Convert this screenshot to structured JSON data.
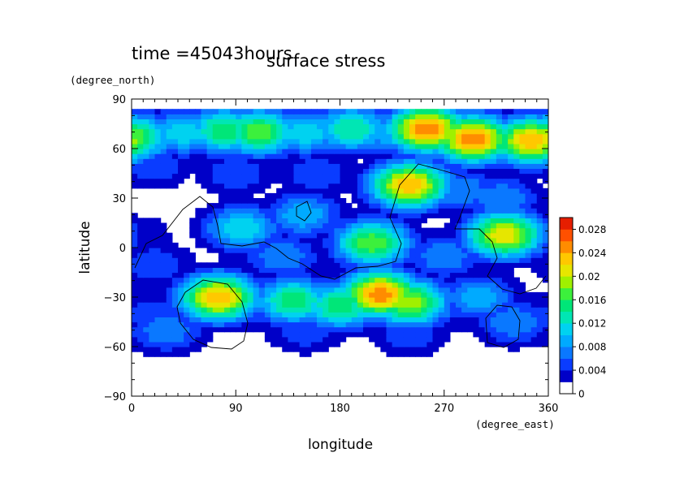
{
  "time_label": "time =45043hours",
  "chart_data": {
    "type": "heatmap",
    "title": "surface stress",
    "xlabel": "longitude",
    "ylabel": "latitude",
    "x_unit": "(degree_east)",
    "y_unit": "(degree_north)",
    "xlim": [
      0,
      360
    ],
    "ylim": [
      -90,
      90
    ],
    "x_ticks": [
      0,
      90,
      180,
      270,
      360
    ],
    "x_tick_labels": [
      "0",
      "90",
      "180",
      "270",
      "360"
    ],
    "y_ticks": [
      -90,
      -60,
      -30,
      0,
      30,
      60,
      90
    ],
    "y_tick_labels": [
      "−90",
      "−60",
      "−30",
      "0",
      "30",
      "60",
      "90"
    ],
    "grid": false,
    "colorbar": {
      "position": "right",
      "levels": [
        0,
        0.002,
        0.004,
        0.006,
        0.008,
        0.01,
        0.012,
        0.014,
        0.016,
        0.018,
        0.02,
        0.022,
        0.024,
        0.026,
        0.028,
        0.03
      ],
      "tick_values": [
        0,
        0.004,
        0.008,
        0.012,
        0.016,
        0.02,
        0.024,
        0.028
      ],
      "tick_labels": [
        "0",
        "0.004",
        "0.008",
        "0.012",
        "0.016",
        "0.02",
        "0.024",
        "0.028"
      ],
      "colors": [
        "#ffffff",
        "#0000c8",
        "#0a3cff",
        "#0a78ff",
        "#00aaff",
        "#00d2f0",
        "#00e6b4",
        "#00e678",
        "#3cf03c",
        "#a0f000",
        "#e6e600",
        "#ffc800",
        "#ff8c00",
        "#ff5000",
        "#e61e00"
      ]
    },
    "field_features": [
      {
        "lon": 0,
        "lat": 67,
        "value": 0.018
      },
      {
        "lon": 45,
        "lat": 70,
        "value": 0.012
      },
      {
        "lon": 80,
        "lat": 71,
        "value": 0.016
      },
      {
        "lon": 110,
        "lat": 70,
        "value": 0.018
      },
      {
        "lon": 150,
        "lat": 70,
        "value": 0.012
      },
      {
        "lon": 190,
        "lat": 72,
        "value": 0.014
      },
      {
        "lon": 225,
        "lat": 70,
        "value": 0.01
      },
      {
        "lon": 255,
        "lat": 72,
        "value": 0.026
      },
      {
        "lon": 295,
        "lat": 66,
        "value": 0.026
      },
      {
        "lon": 345,
        "lat": 65,
        "value": 0.024
      },
      {
        "lon": 240,
        "lat": 38,
        "value": 0.024
      },
      {
        "lon": 20,
        "lat": 50,
        "value": 0.006
      },
      {
        "lon": 90,
        "lat": 45,
        "value": 0.006
      },
      {
        "lon": 160,
        "lat": 45,
        "value": 0.006
      },
      {
        "lon": 285,
        "lat": 35,
        "value": 0.008
      },
      {
        "lon": 320,
        "lat": 30,
        "value": 0.008
      },
      {
        "lon": 95,
        "lat": 12,
        "value": 0.012
      },
      {
        "lon": 148,
        "lat": 20,
        "value": 0.01
      },
      {
        "lon": 208,
        "lat": 3,
        "value": 0.018
      },
      {
        "lon": 322,
        "lat": 8,
        "value": 0.022
      },
      {
        "lon": 20,
        "lat": -10,
        "value": 0.006
      },
      {
        "lon": 130,
        "lat": -5,
        "value": 0.008
      },
      {
        "lon": 270,
        "lat": -5,
        "value": 0.008
      },
      {
        "lon": 75,
        "lat": -30,
        "value": 0.024
      },
      {
        "lon": 140,
        "lat": -32,
        "value": 0.016
      },
      {
        "lon": 180,
        "lat": -35,
        "value": 0.016
      },
      {
        "lon": 215,
        "lat": -28,
        "value": 0.026
      },
      {
        "lon": 240,
        "lat": -33,
        "value": 0.02
      },
      {
        "lon": 300,
        "lat": -30,
        "value": 0.01
      },
      {
        "lon": 30,
        "lat": -50,
        "value": 0.008
      },
      {
        "lon": 150,
        "lat": -50,
        "value": 0.006
      },
      {
        "lon": 240,
        "lat": -52,
        "value": 0.006
      },
      {
        "lon": 330,
        "lat": -45,
        "value": 0.008
      }
    ]
  }
}
